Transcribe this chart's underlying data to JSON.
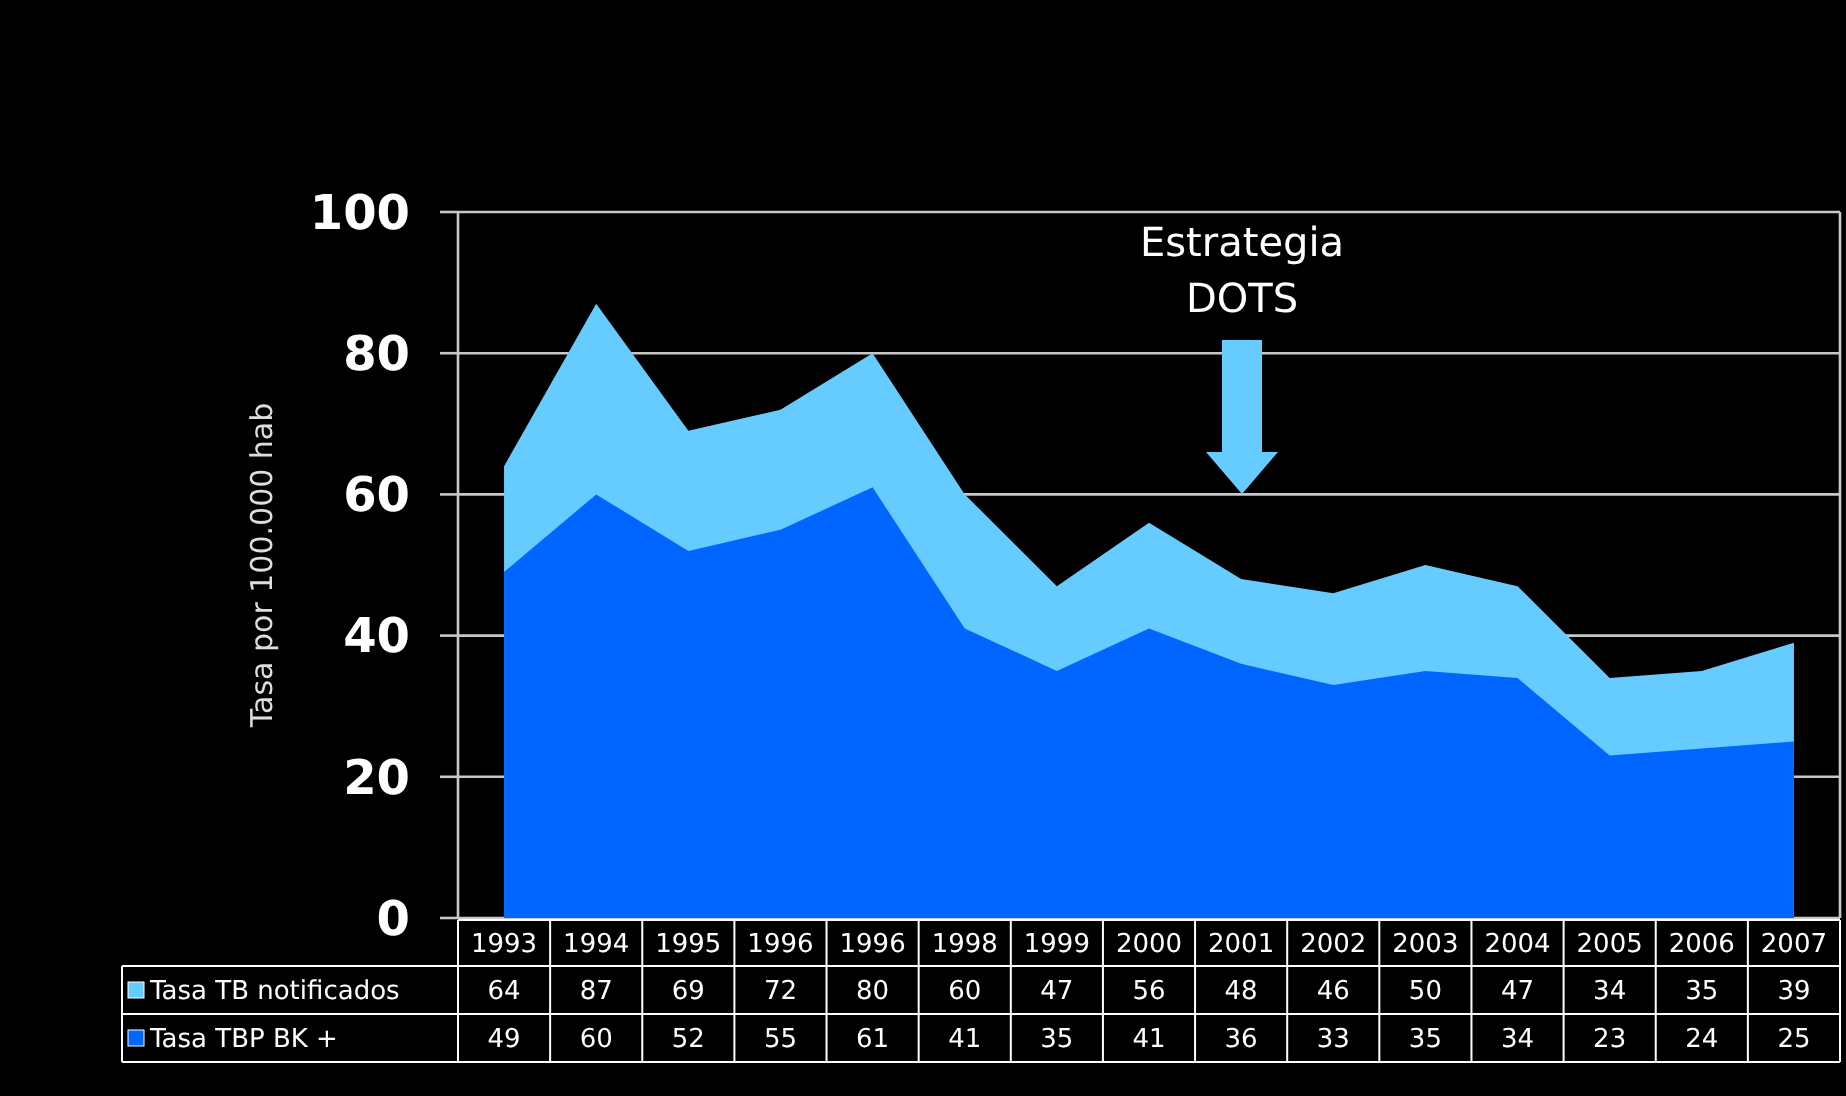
{
  "chart_data": {
    "type": "area",
    "ylabel": "Tasa por 100.000 hab",
    "categories": [
      "1993",
      "1994",
      "1995",
      "1996",
      "1996",
      "1998",
      "1999",
      "2000",
      "2001",
      "2002",
      "2003",
      "2004",
      "2005",
      "2006",
      "2007"
    ],
    "series": [
      {
        "name": "Tasa TB notificados",
        "color": "#66ccff",
        "values": [
          64,
          87,
          69,
          72,
          80,
          60,
          47,
          56,
          48,
          46,
          50,
          47,
          34,
          35,
          39
        ]
      },
      {
        "name": "Tasa TBP BK +",
        "color": "#0066ff",
        "values": [
          49,
          60,
          52,
          55,
          61,
          41,
          35,
          41,
          36,
          33,
          35,
          34,
          23,
          24,
          25
        ]
      }
    ],
    "ylim": [
      0,
      100
    ],
    "yticks": [
      0,
      20,
      40,
      60,
      80,
      100
    ],
    "grid": "y",
    "legend": "bottom",
    "data_labels": true,
    "annotations": [
      "Estrategia DOTS"
    ]
  }
}
